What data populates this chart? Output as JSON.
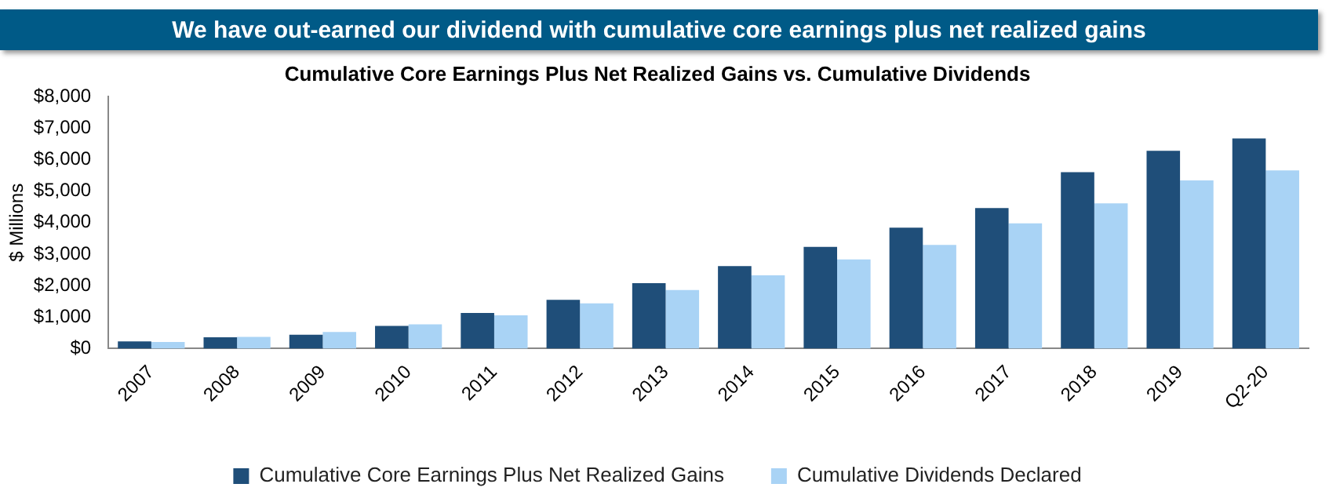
{
  "chart_data": {
    "type": "bar",
    "title": "We have out-earned our dividend with cumulative core earnings plus net realized gains",
    "subtitle": "Cumulative Core Earnings Plus Net Realized Gains vs. Cumulative Dividends",
    "ylabel": "$ Millions",
    "categories": [
      "2007",
      "2008",
      "2009",
      "2010",
      "2011",
      "2012",
      "2013",
      "2014",
      "2015",
      "2016",
      "2017",
      "2018",
      "2019",
      "Q2-20"
    ],
    "series": [
      {
        "name": "Cumulative Core Earnings Plus Net Realized Gains",
        "color": "#1f4e79",
        "values": [
          230,
          360,
          440,
          720,
          1130,
          1550,
          2080,
          2620,
          3230,
          3840,
          4460,
          5600,
          6280,
          6670
        ]
      },
      {
        "name": "Cumulative Dividends Declared",
        "color": "#a9d3f5",
        "values": [
          210,
          370,
          530,
          770,
          1060,
          1440,
          1860,
          2330,
          2830,
          3290,
          3980,
          4610,
          5340,
          5660
        ]
      }
    ],
    "ylim": [
      0,
      8000
    ],
    "yticks": [
      {
        "value": 0,
        "label": "$0"
      },
      {
        "value": 1000,
        "label": "$1,000"
      },
      {
        "value": 2000,
        "label": "$2,000"
      },
      {
        "value": 3000,
        "label": "$3,000"
      },
      {
        "value": 4000,
        "label": "$4,000"
      },
      {
        "value": 5000,
        "label": "$5,000"
      },
      {
        "value": 6000,
        "label": "$6,000"
      },
      {
        "value": 7000,
        "label": "$7,000"
      },
      {
        "value": 8000,
        "label": "$8,000"
      }
    ],
    "grid": false,
    "legend": "bottom"
  }
}
